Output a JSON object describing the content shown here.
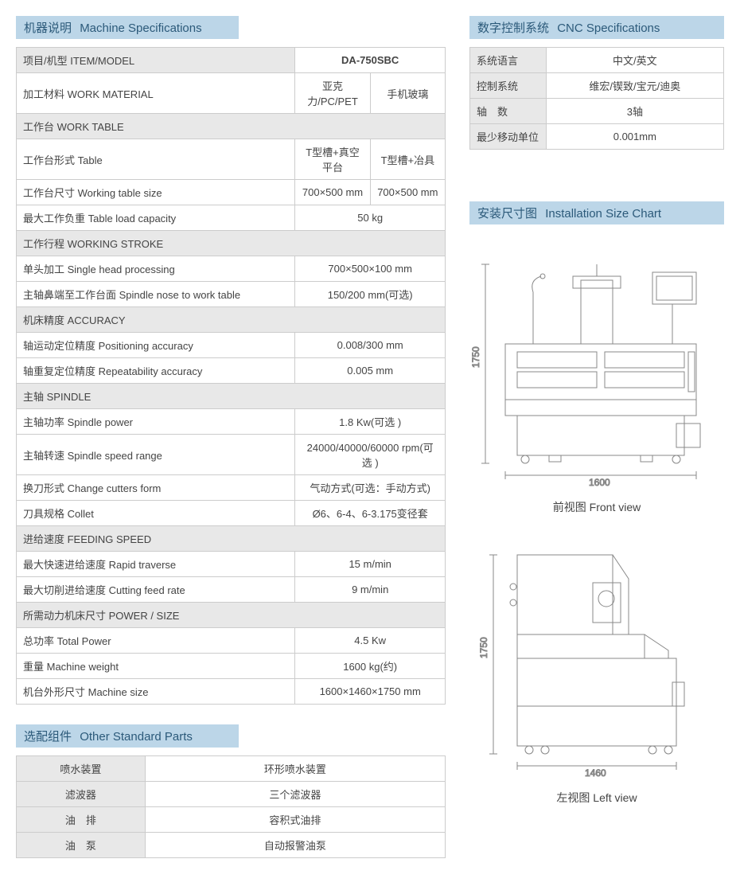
{
  "colors": {
    "header_bg": "#bcd6e8",
    "header_text": "#2c5a7a",
    "border": "#cccccc",
    "section_bg": "#e8e8e8",
    "text": "#444444",
    "drawing_stroke": "#888888"
  },
  "machine_specs": {
    "title_cn": "机器说明",
    "title_en": "Machine Specifications",
    "item_label": "项目/机型 ITEM/MODEL",
    "model": "DA-750SBC",
    "rows": [
      {
        "label": "加工材料 WORK MATERIAL",
        "v1": "亚克力/PC/PET",
        "v2": "手机玻璃",
        "split": true
      },
      {
        "label": "工作台 WORK TABLE",
        "section": true
      },
      {
        "label": "工作台形式 Table",
        "v1": "T型槽+真空平台",
        "v2": "T型槽+冶具",
        "split": true
      },
      {
        "label": "工作台尺寸 Working table size",
        "v1": "700×500 mm",
        "v2": "700×500 mm",
        "split": true
      },
      {
        "label": "最大工作负重 Table load capacity",
        "v": "50 kg"
      },
      {
        "label": "工作行程 WORKING STROKE",
        "section": true
      },
      {
        "label": "单头加工 Single head processing",
        "v": "700×500×100 mm"
      },
      {
        "label": "主轴鼻端至工作台面 Spindle nose to work table",
        "v": "150/200 mm(可选)"
      },
      {
        "label": "机床精度 ACCURACY",
        "section": true
      },
      {
        "label": "轴运动定位精度 Positioning accuracy",
        "v": "0.008/300 mm"
      },
      {
        "label": "轴重复定位精度 Repeatability accuracy",
        "v": "0.005 mm"
      },
      {
        "label": "主轴 SPINDLE",
        "section": true
      },
      {
        "label": "主轴功率 Spindle power",
        "v": "1.8 Kw(可选 )"
      },
      {
        "label": "主轴转速 Spindle speed range",
        "v": "24000/40000/60000 rpm(可选 )"
      },
      {
        "label": "换刀形式 Change cutters form",
        "v": "气动方式(可选：手动方式)"
      },
      {
        "label": "刀具规格 Collet",
        "v": "Ø6、6-4、6-3.175变径套"
      },
      {
        "label": "进给速度 FEEDING SPEED",
        "section": true
      },
      {
        "label": "最大快速进给速度 Rapid traverse",
        "v": "15 m/min"
      },
      {
        "label": "最大切削进给速度 Cutting feed rate",
        "v": "9 m/min"
      },
      {
        "label": "所需动力机床尺寸 POWER / SIZE",
        "section": true
      },
      {
        "label": "总功率 Total Power",
        "v": "4.5 Kw"
      },
      {
        "label": "重量 Machine weight",
        "v": "1600 kg(约)"
      },
      {
        "label": "机台外形尺寸 Machine size",
        "v": "1600×1460×1750 mm"
      }
    ]
  },
  "other_parts": {
    "title_cn": "选配组件",
    "title_en": "Other Standard Parts",
    "rows": [
      {
        "label": "喷水装置",
        "value": "环形喷水装置"
      },
      {
        "label": "滤波器",
        "value": "三个滤波器"
      },
      {
        "label": "油　排",
        "value": "容积式油排"
      },
      {
        "label": "油　泵",
        "value": "自动报警油泵"
      }
    ]
  },
  "cnc_specs": {
    "title_cn": "数字控制系统",
    "title_en": "CNC Specifications",
    "rows": [
      {
        "label": "系统语言",
        "value": "中文/英文"
      },
      {
        "label": "控制系统",
        "value": "维宏/锲致/宝元/迪奥"
      },
      {
        "label": "轴　数",
        "value": "3轴"
      },
      {
        "label": "最少移动单位",
        "value": "0.001mm"
      }
    ]
  },
  "installation": {
    "title_cn": "安装尺寸图",
    "title_en": "Installation Size Chart",
    "front_view": {
      "width_label": "1600",
      "height_label": "1750",
      "caption": "前视图  Front view"
    },
    "left_view": {
      "width_label": "1460",
      "height_label": "1750",
      "caption": "左视图  Left view"
    }
  }
}
